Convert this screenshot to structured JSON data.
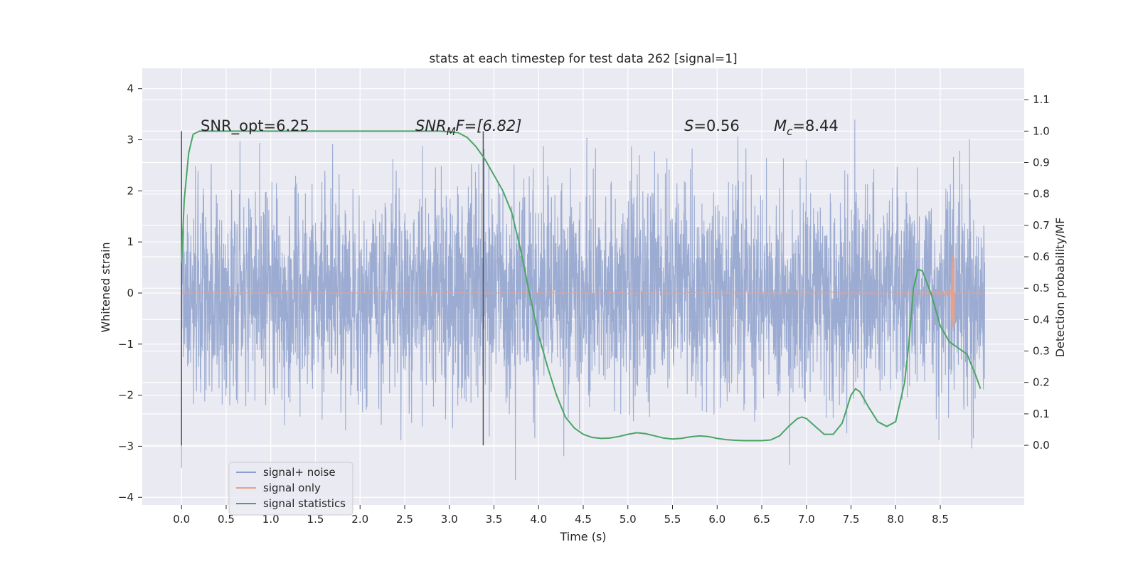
{
  "chart_data": {
    "type": "line",
    "title": "stats at each timestep for test data 262 [signal=1]",
    "xlabel": "Time (s)",
    "ylabel": "Whitened strain",
    "ylabel_right": "Detection probability/MF",
    "xlim": [
      -0.44,
      9.44
    ],
    "ylim": [
      -4.15,
      4.4
    ],
    "ylim_right": [
      -0.19,
      1.2
    ],
    "x_ticks": [
      "0.0",
      "0.5",
      "1.0",
      "1.5",
      "2.0",
      "2.5",
      "3.0",
      "3.5",
      "4.0",
      "4.5",
      "5.0",
      "5.5",
      "6.0",
      "6.5",
      "7.0",
      "7.5",
      "8.0",
      "8.5"
    ],
    "y_ticks": [
      "4",
      "3",
      "2",
      "1",
      "0",
      "−1",
      "−2",
      "−3",
      "−4"
    ],
    "y_right_ticks": [
      "1.1",
      "1.0",
      "0.9",
      "0.8",
      "0.7",
      "0.6",
      "0.5",
      "0.4",
      "0.3",
      "0.2",
      "0.1",
      "0.0"
    ],
    "annotations": {
      "snr_opt": "SNR_opt=6.25",
      "snr_mf_main": "SNR",
      "snr_mf_sub": "M",
      "snr_mf_rest": "F=[6.82]",
      "s_main": "S",
      "s_rest": "=0.56",
      "mc_main": "M",
      "mc_sub": "c",
      "mc_rest": "=8.44"
    },
    "vertical_markers": [
      0.0,
      3.38
    ],
    "series": [
      {
        "name": "signal+ noise",
        "color": "#8da0cb",
        "duration": 9.0,
        "sigma": 1.0
      },
      {
        "name": "signal only",
        "color": "#e8a18c",
        "chirp_end": 8.66,
        "max_amp": 0.75
      },
      {
        "name": "signal statistics",
        "color": "#4aa564",
        "x": [
          0.0,
          0.03,
          0.08,
          0.13,
          0.2,
          0.3,
          0.5,
          1.0,
          1.5,
          2.0,
          2.5,
          2.9,
          3.1,
          3.2,
          3.3,
          3.4,
          3.5,
          3.6,
          3.7,
          3.8,
          3.9,
          4.0,
          4.1,
          4.2,
          4.3,
          4.4,
          4.5,
          4.6,
          4.7,
          4.8,
          4.9,
          5.0,
          5.1,
          5.2,
          5.3,
          5.4,
          5.5,
          5.6,
          5.7,
          5.8,
          5.9,
          6.0,
          6.1,
          6.2,
          6.3,
          6.4,
          6.5,
          6.6,
          6.7,
          6.8,
          6.9,
          6.95,
          7.0,
          7.1,
          7.2,
          7.3,
          7.4,
          7.5,
          7.55,
          7.6,
          7.7,
          7.8,
          7.9,
          8.0,
          8.1,
          8.15,
          8.2,
          8.25,
          8.3,
          8.4,
          8.5,
          8.6,
          8.7,
          8.8,
          8.9,
          8.95
        ],
        "y": [
          0.58,
          0.78,
          0.93,
          0.99,
          1.0,
          1.0,
          1.0,
          1.0,
          1.0,
          1.0,
          1.0,
          1.0,
          0.995,
          0.98,
          0.95,
          0.91,
          0.86,
          0.81,
          0.74,
          0.62,
          0.48,
          0.35,
          0.25,
          0.16,
          0.09,
          0.055,
          0.035,
          0.025,
          0.022,
          0.023,
          0.028,
          0.035,
          0.04,
          0.037,
          0.03,
          0.023,
          0.02,
          0.022,
          0.027,
          0.03,
          0.028,
          0.022,
          0.018,
          0.016,
          0.015,
          0.015,
          0.015,
          0.017,
          0.03,
          0.06,
          0.085,
          0.09,
          0.085,
          0.06,
          0.035,
          0.035,
          0.07,
          0.16,
          0.18,
          0.17,
          0.12,
          0.075,
          0.06,
          0.075,
          0.2,
          0.33,
          0.5,
          0.56,
          0.555,
          0.48,
          0.38,
          0.33,
          0.31,
          0.29,
          0.22,
          0.18
        ]
      }
    ],
    "legend_position": "lower-left",
    "grid": true
  }
}
